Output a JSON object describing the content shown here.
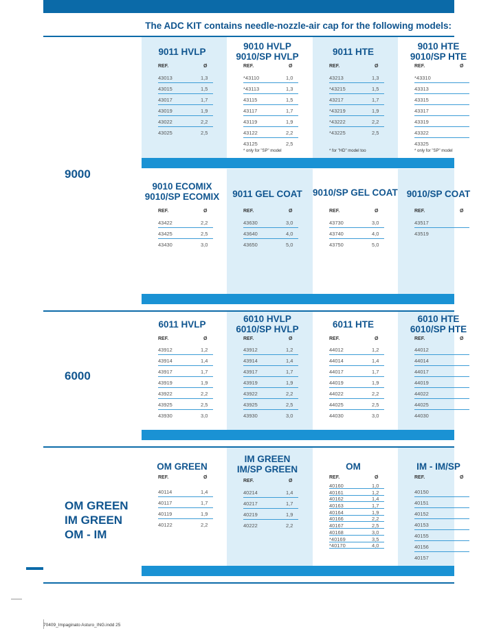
{
  "header": {
    "intro": "The ADC KIT contains needle-nozzle-air cap for the following models:"
  },
  "table_labels": {
    "ref": "REF.",
    "dia": "Ø"
  },
  "groups": [
    {
      "label": "9000"
    },
    {
      "label": "6000"
    },
    {
      "label": "OM GREEN\nIM GREEN\nOM - IM"
    }
  ],
  "blocks": [
    {
      "columns": [
        {
          "title": "9011 HVLP",
          "rows": [
            [
              "43013",
              "1,3"
            ],
            [
              "43015",
              "1,5"
            ],
            [
              "43017",
              "1,7"
            ],
            [
              "43019",
              "1,9"
            ],
            [
              "43022",
              "2,2"
            ],
            [
              "43025",
              "2,5"
            ]
          ]
        },
        {
          "title": "9010 HVLP\n9010/SP HVLP",
          "rows": [
            [
              "*43110",
              "1,0"
            ],
            [
              "*43113",
              "1,3"
            ],
            [
              "43115",
              "1,5"
            ],
            [
              "43117",
              "1,7"
            ],
            [
              "43119",
              "1,9"
            ],
            [
              "43122",
              "2,2"
            ],
            [
              "43125",
              "2,5"
            ]
          ],
          "note": "* only for \"SP\" model"
        },
        {
          "title": "9011 HTE",
          "rows": [
            [
              "43213",
              "1,3"
            ],
            [
              "*43215",
              "1,5"
            ],
            [
              "43217",
              "1,7"
            ],
            [
              "*43219",
              "1,9"
            ],
            [
              "*43222",
              "2,2"
            ],
            [
              "*43225",
              "2,5"
            ]
          ],
          "note": "* for \"HD\" model too"
        },
        {
          "title": "9010 HTE\n9010/SP HTE",
          "rows": [
            [
              "*43310",
              ""
            ],
            [
              "43313",
              ""
            ],
            [
              "43315",
              ""
            ],
            [
              "43317",
              ""
            ],
            [
              "43319",
              ""
            ],
            [
              "43322",
              ""
            ],
            [
              "43325",
              ""
            ]
          ],
          "note": "* only for \"SP\" model"
        }
      ]
    },
    {
      "columns": [
        {
          "title": "9010 ECOMIX\n9010/SP ECOMIX",
          "rows": [
            [
              "43422",
              "2,2"
            ],
            [
              "43425",
              "2,5"
            ],
            [
              "43430",
              "3,0"
            ]
          ]
        },
        {
          "title": "9011 GEL COAT",
          "rows": [
            [
              "43630",
              "3,0"
            ],
            [
              "43640",
              "4,0"
            ],
            [
              "43650",
              "5,0"
            ]
          ]
        },
        {
          "title": "9010/SP GEL COAT",
          "rows": [
            [
              "43730",
              "3,0"
            ],
            [
              "43740",
              "4,0"
            ],
            [
              "43750",
              "5,0"
            ]
          ]
        },
        {
          "title": "9010/SP COAT",
          "rows": [
            [
              "43517",
              ""
            ],
            [
              "43519",
              ""
            ]
          ]
        }
      ]
    },
    {
      "columns": [
        {
          "title": "6011 HVLP",
          "rows": [
            [
              "43912",
              "1,2"
            ],
            [
              "43914",
              "1,4"
            ],
            [
              "43917",
              "1,7"
            ],
            [
              "43919",
              "1,9"
            ],
            [
              "43922",
              "2,2"
            ],
            [
              "43925",
              "2,5"
            ],
            [
              "43930",
              "3,0"
            ]
          ]
        },
        {
          "title": "6010 HVLP\n6010/SP HVLP",
          "rows": [
            [
              "43912",
              "1,2"
            ],
            [
              "43914",
              "1,4"
            ],
            [
              "43917",
              "1,7"
            ],
            [
              "43919",
              "1,9"
            ],
            [
              "43922",
              "2,2"
            ],
            [
              "43925",
              "2,5"
            ],
            [
              "43930",
              "3,0"
            ]
          ]
        },
        {
          "title": "6011 HTE",
          "rows": [
            [
              "44012",
              "1,2"
            ],
            [
              "44014",
              "1,4"
            ],
            [
              "44017",
              "1,7"
            ],
            [
              "44019",
              "1,9"
            ],
            [
              "44022",
              "2,2"
            ],
            [
              "44025",
              "2,5"
            ],
            [
              "44030",
              "3,0"
            ]
          ]
        },
        {
          "title": "6010 HTE\n6010/SP HTE",
          "rows": [
            [
              "44012",
              ""
            ],
            [
              "44014",
              ""
            ],
            [
              "44017",
              ""
            ],
            [
              "44019",
              ""
            ],
            [
              "44022",
              ""
            ],
            [
              "44025",
              ""
            ],
            [
              "44030",
              ""
            ]
          ]
        }
      ]
    },
    {
      "columns": [
        {
          "title": "OM GREEN",
          "rows": [
            [
              "40114",
              "1,4"
            ],
            [
              "40117",
              "1,7"
            ],
            [
              "40119",
              "1,9"
            ],
            [
              "40122",
              "2,2"
            ]
          ]
        },
        {
          "title": "IM GREEN\nIM/SP GREEN",
          "rows": [
            [
              "40214",
              "1,4"
            ],
            [
              "40217",
              "1,7"
            ],
            [
              "40219",
              "1,9"
            ],
            [
              "40222",
              "2,2"
            ]
          ]
        },
        {
          "title": "OM",
          "rows": [
            [
              "40160",
              "1,0"
            ],
            [
              "40161",
              "1,2"
            ],
            [
              "40162",
              "1,4"
            ],
            [
              "40163",
              "1,7"
            ],
            [
              "40164",
              "1,9"
            ],
            [
              "40166",
              "2,2"
            ],
            [
              "40167",
              "2,5"
            ],
            [
              "40168",
              "3,0"
            ],
            [
              "*40169",
              "3,5"
            ],
            [
              "*40170",
              "4,0"
            ]
          ]
        },
        {
          "title": "IM - IM/SP",
          "rows": [
            [
              "40150",
              ""
            ],
            [
              "40151",
              ""
            ],
            [
              "40152",
              ""
            ],
            [
              "40153",
              ""
            ],
            [
              "40155",
              ""
            ],
            [
              "40156",
              ""
            ],
            [
              "40157",
              ""
            ]
          ]
        }
      ]
    }
  ],
  "footer": {
    "text": "70409_Impaginato Asturo_ING.indd   25"
  }
}
